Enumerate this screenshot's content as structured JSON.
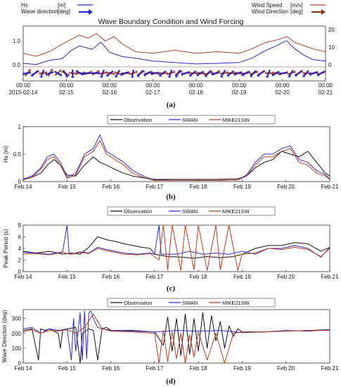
{
  "colors": {
    "hs": "#2a2ad0",
    "wind": "#b0402a",
    "obs": "#111111",
    "swan": "#2b2bd6",
    "mike": "#c23a1a",
    "arrow_blue": "#2222cc",
    "arrow_red": "#b04020"
  },
  "chart_data": [
    {
      "type": "line",
      "id": "a",
      "title": "Wave Boundary Condition and Wind Forcing",
      "caption": "(a)",
      "legend_left": [
        {
          "name": "Hs",
          "unit": "[m]"
        },
        {
          "name": "Wave direction",
          "unit": "[deg]"
        }
      ],
      "legend_right": [
        {
          "name": "Wind Speed",
          "unit": "[m/s]"
        },
        {
          "name": "Wind Direction",
          "unit": "[deg]"
        }
      ],
      "left_ticks": [
        "0.0",
        "1.0"
      ],
      "right_ticks": [
        "0",
        "10",
        "20"
      ],
      "ylim_left": [
        0,
        1.4
      ],
      "ylim_right": [
        -5,
        22
      ],
      "xlim": [
        0,
        7
      ],
      "x_tick_times": [
        "00:00",
        "00:00",
        "00:00",
        "00:00",
        "00:00",
        "00:00",
        "00:00",
        "00:00"
      ],
      "x_tick_dates": [
        "2015-02-14",
        "02-15",
        "02-16",
        "02-17",
        "02-18",
        "02-19",
        "02-20",
        "02-21"
      ],
      "series": [
        {
          "key": "hs",
          "axis": "left",
          "x": [
            0,
            0.3,
            0.6,
            0.9,
            1.1,
            1.3,
            1.6,
            1.8,
            2.0,
            2.3,
            2.6,
            3.0,
            3.5,
            4.0,
            4.5,
            5.0,
            5.3,
            5.6,
            5.9,
            6.1,
            6.3,
            6.5,
            6.7,
            7.0
          ],
          "values": [
            0.12,
            0.08,
            0.22,
            0.28,
            0.55,
            0.72,
            0.6,
            0.85,
            0.5,
            0.35,
            0.3,
            0.2,
            0.15,
            0.1,
            0.12,
            0.15,
            0.3,
            0.55,
            0.75,
            0.9,
            0.6,
            0.4,
            0.25,
            0.2
          ]
        },
        {
          "key": "wind",
          "axis": "right",
          "x": [
            0,
            0.3,
            0.6,
            0.9,
            1.1,
            1.3,
            1.5,
            1.7,
            1.9,
            2.1,
            2.3,
            2.6,
            3.0,
            3.5,
            4.0,
            4.5,
            5.0,
            5.3,
            5.6,
            5.9,
            6.1,
            6.3,
            6.5,
            6.7,
            7.0
          ],
          "values": [
            4,
            2,
            5,
            10,
            13,
            16,
            14,
            17,
            12,
            15,
            10,
            5,
            4,
            6,
            4,
            5,
            4,
            7,
            11,
            13,
            15,
            11,
            9,
            7,
            5
          ]
        }
      ],
      "wave_dir_samples": [
        260,
        230,
        200,
        250,
        120,
        150,
        180,
        300,
        270,
        90,
        200,
        230,
        210,
        250,
        190,
        220,
        240,
        260,
        230,
        200,
        210,
        250,
        230,
        240,
        220,
        260,
        210,
        230,
        250,
        240,
        220,
        230,
        200,
        240,
        260,
        210,
        230,
        220,
        250,
        240
      ],
      "wind_dir_samples": [
        40,
        60,
        80,
        30,
        50,
        120,
        100,
        90,
        70,
        60,
        80,
        100,
        110,
        90,
        70,
        60,
        80,
        100,
        90,
        70,
        60,
        80,
        90,
        100,
        70,
        60,
        80,
        90,
        100,
        80,
        70,
        60,
        90,
        100,
        80,
        70,
        60,
        90,
        80,
        70
      ]
    },
    {
      "type": "line",
      "id": "b",
      "caption": "(b)",
      "ylabel": "Hs (m)",
      "legend": [
        "Observation",
        "SWAN",
        "MIKE21SW"
      ],
      "ylim": [
        0,
        1.0
      ],
      "y_ticks": [
        0,
        0.5,
        1
      ],
      "xlim": [
        0,
        7
      ],
      "x_ticks": [
        "Feb 14",
        "Feb 15",
        "Feb 16",
        "Feb 17",
        "Feb 18",
        "Feb 19",
        "Feb 20",
        "Feb 21"
      ],
      "series": [
        {
          "key": "obs",
          "x": [
            0,
            0.2,
            0.4,
            0.55,
            0.7,
            0.85,
            1.0,
            1.2,
            1.4,
            1.6,
            1.75,
            1.9,
            2.1,
            2.3,
            2.5,
            2.8,
            3.0,
            3.5,
            4.0,
            4.5,
            4.9,
            5.1,
            5.3,
            5.5,
            5.7,
            5.9,
            6.1,
            6.3,
            6.5,
            6.7,
            6.9,
            7.0
          ],
          "values": [
            0.05,
            0.08,
            0.15,
            0.3,
            0.4,
            0.3,
            0.12,
            0.1,
            0.3,
            0.45,
            0.35,
            0.3,
            0.22,
            0.15,
            0.1,
            0.06,
            0.04,
            0.04,
            0.04,
            0.04,
            0.05,
            0.1,
            0.25,
            0.35,
            0.4,
            0.55,
            0.5,
            0.45,
            0.55,
            0.35,
            0.15,
            0.1
          ]
        },
        {
          "key": "swan",
          "x": [
            0,
            0.2,
            0.4,
            0.55,
            0.7,
            0.85,
            1.0,
            1.2,
            1.4,
            1.6,
            1.75,
            1.9,
            2.1,
            2.3,
            2.5,
            2.8,
            3.0,
            3.5,
            4.0,
            4.5,
            4.9,
            5.1,
            5.3,
            5.5,
            5.7,
            5.9,
            6.1,
            6.3,
            6.5,
            6.7,
            6.9,
            7.0
          ],
          "values": [
            0.04,
            0.1,
            0.25,
            0.45,
            0.5,
            0.35,
            0.08,
            0.15,
            0.5,
            0.6,
            0.85,
            0.55,
            0.45,
            0.35,
            0.2,
            0.08,
            0.03,
            0.02,
            0.02,
            0.02,
            0.03,
            0.12,
            0.35,
            0.5,
            0.5,
            0.6,
            0.65,
            0.4,
            0.35,
            0.2,
            0.12,
            0.05
          ]
        },
        {
          "key": "mike",
          "x": [
            0,
            0.2,
            0.4,
            0.55,
            0.7,
            0.85,
            1.0,
            1.2,
            1.4,
            1.6,
            1.75,
            1.9,
            2.1,
            2.3,
            2.5,
            2.8,
            3.0,
            3.5,
            4.0,
            4.5,
            4.9,
            5.1,
            5.3,
            5.5,
            5.7,
            5.9,
            6.1,
            6.3,
            6.5,
            6.7,
            6.9,
            7.0
          ],
          "values": [
            0.03,
            0.08,
            0.22,
            0.4,
            0.45,
            0.3,
            0.06,
            0.12,
            0.45,
            0.55,
            0.75,
            0.5,
            0.4,
            0.3,
            0.15,
            0.06,
            0.02,
            0.02,
            0.02,
            0.02,
            0.03,
            0.1,
            0.3,
            0.45,
            0.45,
            0.55,
            0.6,
            0.35,
            0.3,
            0.15,
            0.1,
            0.04
          ]
        }
      ]
    },
    {
      "type": "line",
      "id": "c",
      "caption": "(c)",
      "ylabel": "Peak Period (s)",
      "legend": [
        "Observation",
        "SWAN",
        "MIKE21SW"
      ],
      "ylim": [
        0,
        8
      ],
      "y_ticks": [
        0,
        2,
        4,
        6,
        8
      ],
      "xlim": [
        0,
        7
      ],
      "x_ticks": [
        "Feb 14",
        "Feb 15",
        "Feb 16",
        "Feb 17",
        "Feb 18",
        "Feb 19",
        "Feb 20",
        "Feb 21"
      ],
      "series": [
        {
          "key": "obs",
          "x": [
            0,
            0.3,
            0.6,
            0.9,
            1.1,
            1.3,
            1.5,
            1.7,
            1.9,
            2.1,
            2.3,
            2.5,
            2.7,
            2.9,
            3.0,
            3.3,
            3.6,
            3.9,
            4.2,
            4.5,
            4.8,
            5.0,
            5.3,
            5.6,
            5.9,
            6.2,
            6.5,
            6.8,
            7.0
          ],
          "values": [
            3.5,
            3.2,
            3.5,
            3.0,
            3.2,
            3.0,
            4.2,
            6.0,
            5.5,
            5.2,
            4.8,
            4.5,
            4.2,
            4.0,
            3.0,
            2.6,
            2.5,
            2.3,
            2.6,
            2.4,
            2.6,
            3.0,
            4.0,
            4.5,
            4.5,
            5.0,
            4.8,
            3.5,
            4.2
          ]
        },
        {
          "key": "swan",
          "x": [
            0,
            0.3,
            0.6,
            0.9,
            1.0,
            1.05,
            1.1,
            1.3,
            1.5,
            1.7,
            1.9,
            2.1,
            2.3,
            2.6,
            2.9,
            3.0,
            3.1,
            3.15,
            3.2,
            3.5,
            3.8,
            4.1,
            4.4,
            4.7,
            5.0,
            5.3,
            5.6,
            5.9,
            6.2,
            6.5,
            6.8,
            7.0
          ],
          "values": [
            3.3,
            3.2,
            3.0,
            3.4,
            8.0,
            3.0,
            3.0,
            3.4,
            3.2,
            4.2,
            3.8,
            3.5,
            3.2,
            3.0,
            3.2,
            3.0,
            8.0,
            3.0,
            3.0,
            3.0,
            3.5,
            3.0,
            3.2,
            3.0,
            3.5,
            3.0,
            4.0,
            4.0,
            4.5,
            4.0,
            2.5,
            4.2
          ]
        },
        {
          "key": "mike",
          "x": [
            0,
            0.3,
            0.6,
            0.9,
            1.1,
            1.3,
            1.5,
            1.7,
            1.9,
            2.1,
            2.3,
            2.6,
            2.9,
            3.1,
            3.2,
            3.3,
            3.4,
            3.6,
            3.7,
            3.9,
            4.0,
            4.2,
            4.4,
            4.5,
            4.7,
            4.9,
            5.0,
            5.3,
            5.6,
            5.9,
            6.2,
            6.5,
            6.8,
            7.0
          ],
          "values": [
            3.0,
            3.1,
            2.9,
            3.3,
            3.0,
            3.3,
            3.1,
            4.0,
            3.6,
            3.3,
            3.0,
            2.9,
            3.1,
            2.0,
            8.0,
            0.3,
            8.0,
            0.2,
            8.0,
            0.3,
            8.0,
            0.2,
            8.0,
            0.3,
            8.0,
            0.2,
            3.0,
            3.2,
            4.0,
            3.8,
            4.2,
            3.8,
            2.6,
            4.0
          ]
        }
      ]
    },
    {
      "type": "line",
      "id": "d",
      "caption": "(d)",
      "ylabel": "Wave Direction (deg)",
      "legend": [
        "Observation",
        "SWAN",
        "MIKE21SW"
      ],
      "ylim": [
        0,
        360
      ],
      "y_ticks": [
        0,
        100,
        200,
        300
      ],
      "xlim": [
        0,
        7
      ],
      "x_ticks": [
        "Feb 14",
        "Feb 15",
        "Feb 16",
        "Feb 17",
        "Feb 18",
        "Feb 19",
        "Feb 20",
        "Feb 21"
      ],
      "series": [
        {
          "key": "obs",
          "x": [
            0,
            0.2,
            0.35,
            0.4,
            0.5,
            0.6,
            0.8,
            0.85,
            0.9,
            1.0,
            1.2,
            1.3,
            1.35,
            1.5,
            1.6,
            1.7,
            1.8,
            1.9,
            2.0,
            2.5,
            3.0,
            3.2,
            3.3,
            3.4,
            3.5,
            3.6,
            3.7,
            3.8,
            3.9,
            4.0,
            4.1,
            4.2,
            4.3,
            4.4,
            4.5,
            4.6,
            4.7,
            4.8,
            4.9,
            5.0,
            5.5,
            6.0,
            6.5,
            7.0
          ],
          "values": [
            220,
            230,
            20,
            230,
            220,
            230,
            200,
            100,
            220,
            230,
            240,
            0,
            200,
            230,
            220,
            20,
            230,
            240,
            220,
            220,
            210,
            120,
            310,
            80,
            300,
            50,
            330,
            60,
            300,
            80,
            340,
            100,
            320,
            150,
            280,
            100,
            250,
            180,
            230,
            210,
            210,
            215,
            220,
            225
          ]
        },
        {
          "key": "swan",
          "x": [
            0,
            0.2,
            0.4,
            0.6,
            0.8,
            1.0,
            1.1,
            1.15,
            1.2,
            1.3,
            1.35,
            1.4,
            1.45,
            1.5,
            1.55,
            1.6,
            1.7,
            1.8,
            2.0,
            2.5,
            3.0,
            3.5,
            4.0,
            4.5,
            5.0,
            5.5,
            6.0,
            6.5,
            7.0
          ],
          "values": [
            230,
            240,
            200,
            230,
            220,
            230,
            20,
            300,
            80,
            340,
            20,
            350,
            30,
            340,
            350,
            300,
            240,
            230,
            220,
            215,
            210,
            220,
            215,
            220,
            205,
            210,
            220,
            215,
            225
          ]
        },
        {
          "key": "mike",
          "x": [
            0,
            0.2,
            0.4,
            0.6,
            0.8,
            1.0,
            1.2,
            1.4,
            1.6,
            1.8,
            2.0,
            2.5,
            3.0,
            3.1,
            3.2,
            3.3,
            3.4,
            3.5,
            3.6,
            3.7,
            3.8,
            3.9,
            4.0,
            4.2,
            4.4,
            4.6,
            4.8,
            5.0,
            5.5,
            6.0,
            6.5,
            7.0
          ],
          "values": [
            210,
            225,
            200,
            220,
            215,
            225,
            200,
            240,
            330,
            230,
            215,
            210,
            200,
            0,
            220,
            10,
            210,
            30,
            200,
            0,
            190,
            40,
            210,
            20,
            200,
            0,
            200,
            210,
            210,
            215,
            220,
            220
          ]
        }
      ]
    }
  ]
}
